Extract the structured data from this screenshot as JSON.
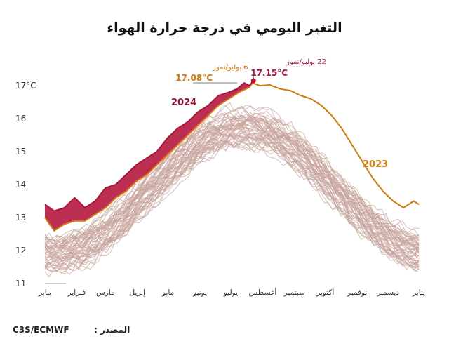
{
  "title": "التغير اليومي في درجة حرارة الهواء",
  "source_label": "المصدر :",
  "source_value": "C3S/ECMWF",
  "colors": {
    "y2024": "#b3123a",
    "y2023": "#d5780a",
    "history": "#c7a39b",
    "axis": "#333333"
  },
  "chart_data": {
    "type": "line",
    "ylim": [
      11,
      17.3
    ],
    "yticks": [
      "17°C",
      "16",
      "15",
      "14",
      "13",
      "12",
      "11"
    ],
    "ytick_values": [
      17,
      16,
      15,
      14,
      13,
      12,
      11
    ],
    "months": [
      "يناير",
      "فبراير",
      "مارس",
      "إبريل",
      "مايو",
      "يونيو",
      "يوليو",
      "أغسطس",
      "سبتمبر",
      "أكتوبر",
      "نوفمبر",
      "ديسمبر",
      "يناير"
    ],
    "grid": false,
    "series": [
      {
        "name": "2024",
        "x": [
          1,
          10,
          20,
          30,
          40,
          50,
          60,
          70,
          80,
          90,
          100,
          110,
          120,
          130,
          140,
          150,
          160,
          170,
          180,
          188,
          195,
          200,
          204
        ],
        "values": [
          13.4,
          13.2,
          13.3,
          13.6,
          13.3,
          13.5,
          13.9,
          14.0,
          14.3,
          14.6,
          14.8,
          15.0,
          15.4,
          15.7,
          15.9,
          16.2,
          16.4,
          16.7,
          16.8,
          16.9,
          17.08,
          17.0,
          17.15
        ]
      },
      {
        "name": "2023",
        "x": [
          1,
          10,
          20,
          30,
          40,
          50,
          60,
          70,
          80,
          90,
          100,
          110,
          120,
          130,
          140,
          150,
          160,
          170,
          180,
          190,
          200,
          203,
          210,
          220,
          230,
          240,
          250,
          260,
          270,
          280,
          290,
          300,
          310,
          320,
          330,
          340,
          350,
          360,
          365
        ],
        "values": [
          13.0,
          12.6,
          12.8,
          12.9,
          12.9,
          13.1,
          13.3,
          13.6,
          13.8,
          14.1,
          14.3,
          14.6,
          14.9,
          15.2,
          15.5,
          15.8,
          16.1,
          16.4,
          16.6,
          16.8,
          16.95,
          17.08,
          17.0,
          17.02,
          16.9,
          16.85,
          16.7,
          16.6,
          16.4,
          16.1,
          15.7,
          15.2,
          14.7,
          14.2,
          13.8,
          13.5,
          13.3,
          13.5,
          13.4
        ]
      }
    ],
    "annotations": [
      {
        "date": "6 يوليو/تموز",
        "value": "17.08°C",
        "series": "2023"
      },
      {
        "date": "22 يوليو/تموز",
        "value": "17.15°C",
        "series": "2024"
      }
    ]
  }
}
